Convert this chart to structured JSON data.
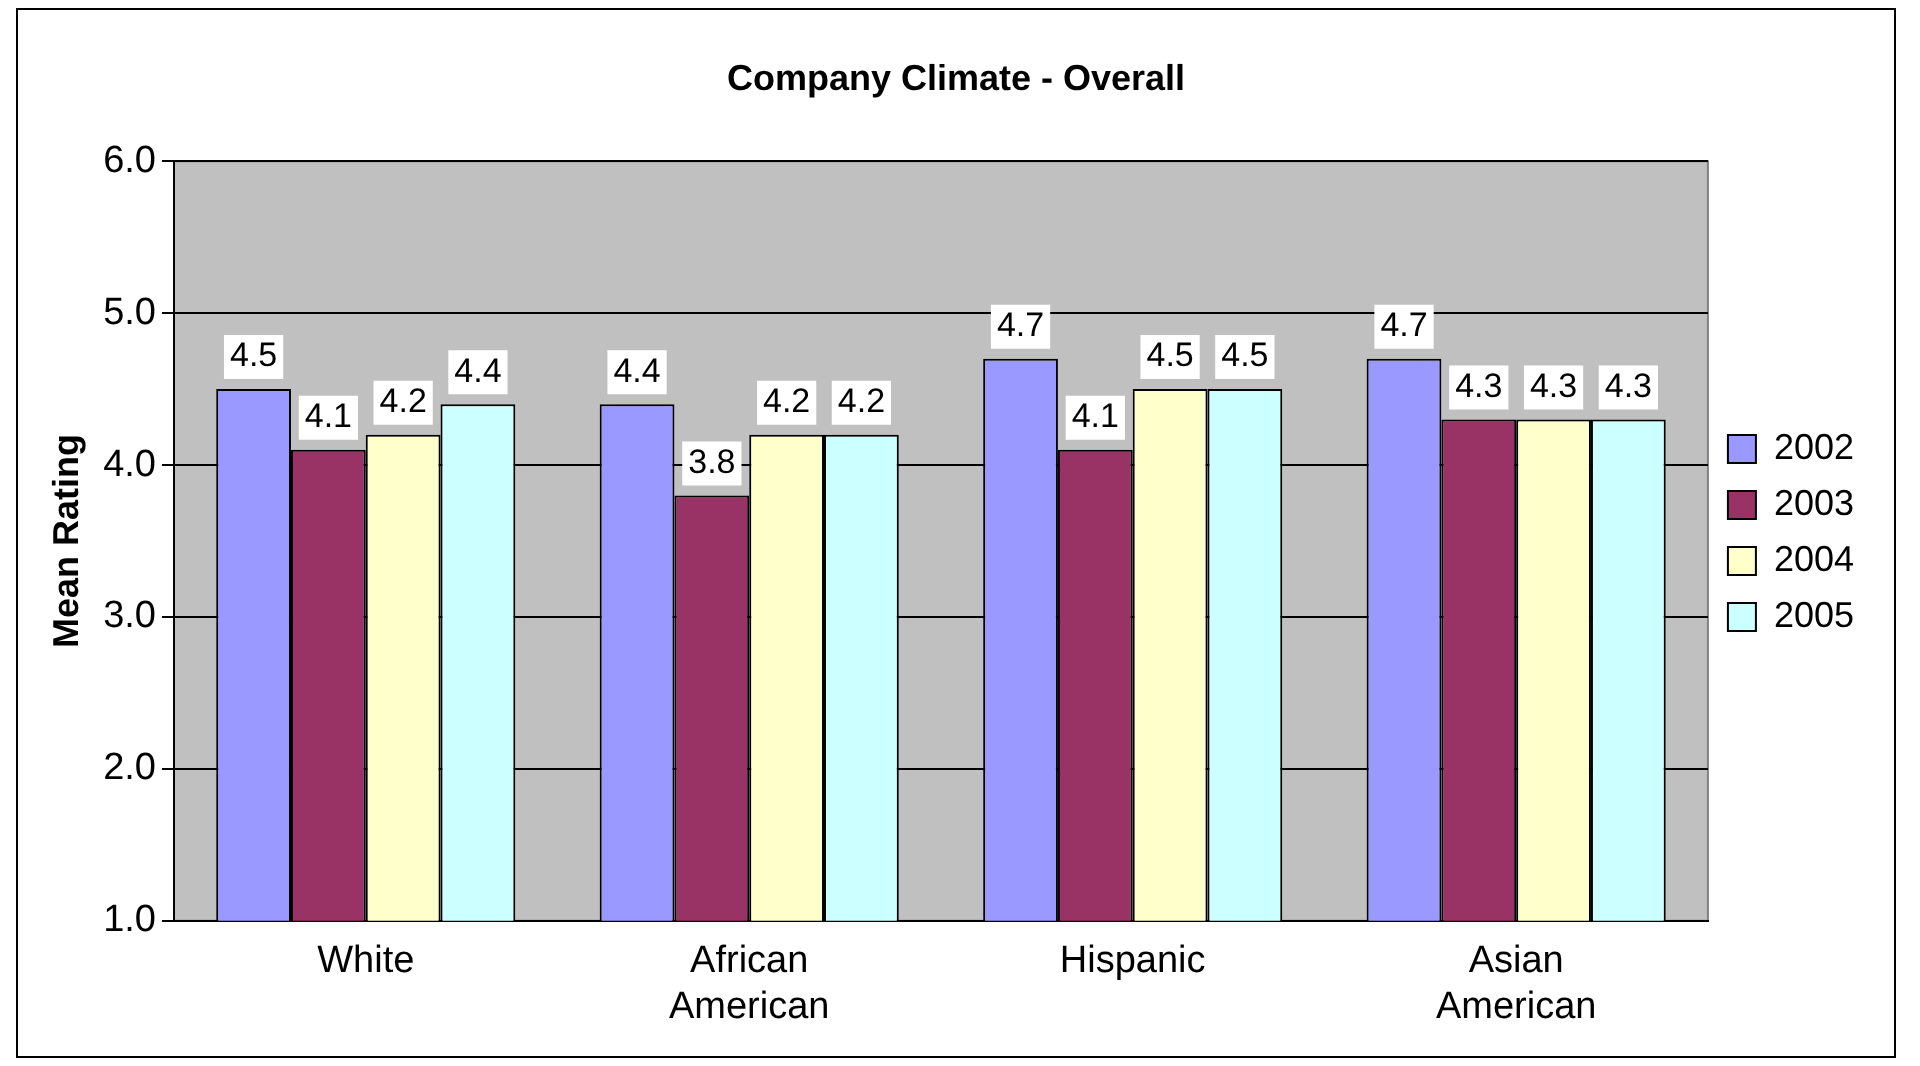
{
  "chart_data": {
    "type": "bar",
    "title": "Company Climate - Overall",
    "ylabel": "Mean Rating",
    "categories": [
      "White",
      "African American",
      "Hispanic",
      "Asian American"
    ],
    "series": [
      {
        "name": "2002",
        "color": "#9999ff",
        "values": [
          4.5,
          4.4,
          4.7,
          4.7
        ]
      },
      {
        "name": "2003",
        "color": "#993366",
        "values": [
          4.1,
          3.8,
          4.1,
          4.3
        ]
      },
      {
        "name": "2004",
        "color": "#ffffcc",
        "values": [
          4.2,
          4.2,
          4.5,
          4.3
        ]
      },
      {
        "name": "2005",
        "color": "#ccffff",
        "values": [
          4.4,
          4.2,
          4.5,
          4.3
        ]
      }
    ],
    "ylim": [
      1,
      6
    ],
    "yticks": [
      {
        "value": 1,
        "label": "1.0"
      },
      {
        "value": 2,
        "label": "2.0"
      },
      {
        "value": 3,
        "label": "3.0"
      },
      {
        "value": 4,
        "label": "4.0"
      },
      {
        "value": 5,
        "label": "5.0"
      },
      {
        "value": 6,
        "label": "6.0"
      }
    ],
    "grid": "y",
    "legend": "right",
    "data_labels": true
  }
}
